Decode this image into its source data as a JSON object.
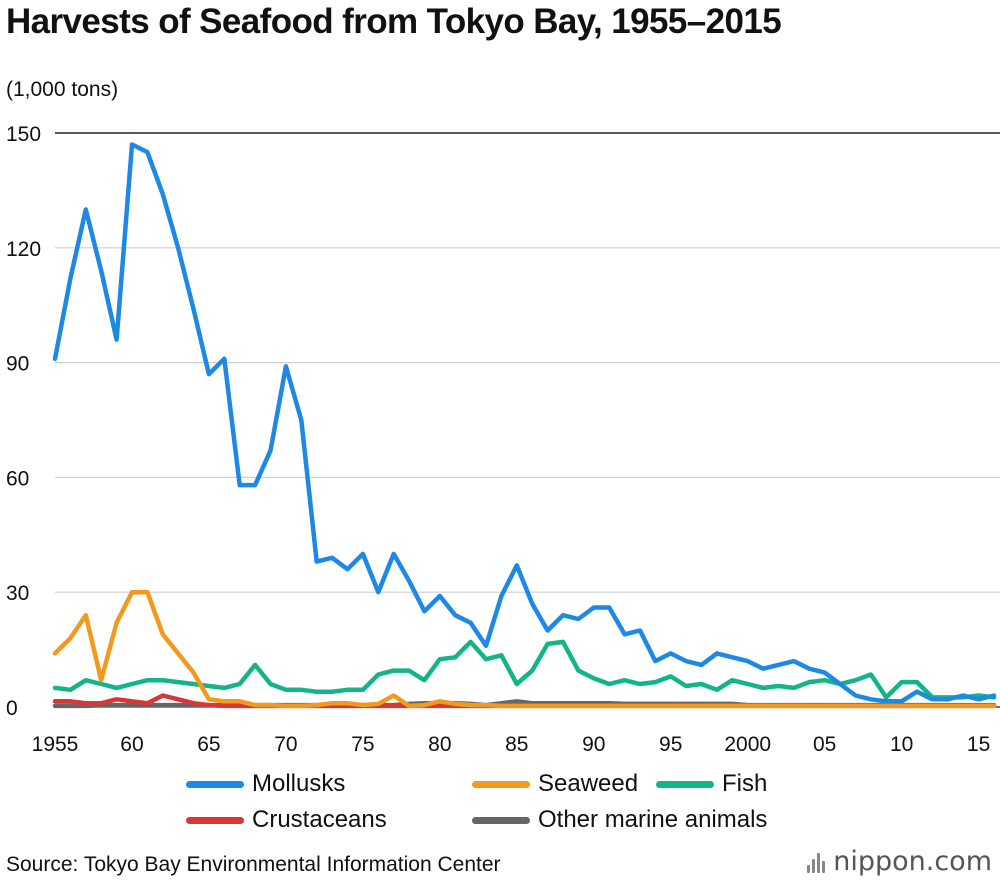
{
  "chart_data": {
    "type": "line",
    "title": "Harvests of Seafood from Tokyo Bay, 1955–2015",
    "ylabel": "(1,000 tons)",
    "ylim": [
      0,
      150
    ],
    "yticks": [
      "0",
      "30",
      "60",
      "90",
      "120",
      "150"
    ],
    "ytick_values": [
      0,
      30,
      60,
      90,
      120,
      150
    ],
    "xlim": [
      1955,
      2016
    ],
    "xticks": [
      "1955",
      "60",
      "65",
      "70",
      "75",
      "80",
      "85",
      "90",
      "95",
      "2000",
      "05",
      "10",
      "15"
    ],
    "xtick_values": [
      1955,
      1960,
      1965,
      1970,
      1975,
      1980,
      1985,
      1990,
      1995,
      2000,
      2005,
      2010,
      2015
    ],
    "grid": true,
    "legend_position": "bottom",
    "x": [
      1955,
      1956,
      1957,
      1958,
      1959,
      1960,
      1961,
      1962,
      1963,
      1964,
      1965,
      1966,
      1967,
      1968,
      1969,
      1970,
      1971,
      1972,
      1973,
      1974,
      1975,
      1976,
      1977,
      1978,
      1979,
      1980,
      1981,
      1982,
      1983,
      1984,
      1985,
      1986,
      1987,
      1988,
      1989,
      1990,
      1991,
      1992,
      1993,
      1994,
      1995,
      1996,
      1997,
      1998,
      1999,
      2000,
      2001,
      2002,
      2003,
      2004,
      2005,
      2006,
      2007,
      2008,
      2009,
      2010,
      2011,
      2012,
      2013,
      2014,
      2015,
      2016
    ],
    "series": [
      {
        "name": "Mollusks",
        "color": "#1e88e5",
        "values": [
          91,
          112,
          130,
          114,
          96,
          147,
          145,
          134,
          120,
          104,
          87,
          91,
          58,
          58,
          67,
          89,
          75,
          38,
          39,
          36,
          40,
          30,
          40,
          33,
          25,
          29,
          24,
          22,
          16,
          29,
          37,
          27,
          20,
          24,
          23,
          26,
          26,
          19,
          20,
          12,
          14,
          12,
          11,
          14,
          13,
          12,
          10,
          11,
          12,
          10,
          9,
          6,
          3,
          2,
          1.5,
          1.5,
          4,
          2,
          2,
          3,
          2,
          3
        ]
      },
      {
        "name": "Seaweed",
        "color": "#f39a1e",
        "values": [
          14,
          18,
          24,
          7,
          22,
          30,
          30,
          19,
          14,
          9,
          2,
          1.5,
          1.5,
          0.5,
          0.5,
          0.3,
          0.3,
          0.5,
          1,
          1,
          0.5,
          0.8,
          3,
          0.3,
          0.5,
          1.5,
          0.8,
          0.5,
          0.5,
          0.3,
          0.3,
          0.3,
          0.3,
          0.3,
          0.3,
          0.3,
          0.3,
          0.3,
          0.3,
          0.3,
          0.3,
          0.3,
          0.3,
          0.3,
          0.3,
          0.3,
          0.3,
          0.3,
          0.3,
          0.3,
          0.3,
          0.3,
          0.3,
          0.3,
          0.3,
          0.3,
          0.3,
          0.3,
          0.3,
          0.3,
          0.3,
          0.3
        ]
      },
      {
        "name": "Fish",
        "color": "#13b48a",
        "values": [
          5,
          4.5,
          7,
          6,
          5,
          6,
          7,
          7,
          6.5,
          6,
          5.5,
          5,
          6,
          11,
          6,
          4.5,
          4.5,
          4,
          4,
          4.5,
          4.5,
          8.5,
          9.5,
          9.5,
          7,
          12.5,
          13,
          17,
          12.5,
          13.5,
          6,
          9.5,
          16.5,
          17,
          9.5,
          7.5,
          6,
          7,
          6,
          6.5,
          8,
          5.5,
          6,
          4.5,
          7,
          6,
          5,
          5.5,
          5,
          6.5,
          7,
          6,
          7,
          8.5,
          2.5,
          6.5,
          6.5,
          2.5,
          2.5,
          2.5,
          3,
          2.5
        ]
      },
      {
        "name": "Crustaceans",
        "color": "#d93636",
        "values": [
          1.5,
          1.5,
          1,
          1,
          2,
          1.5,
          1,
          3,
          2,
          1,
          0.5,
          0.3,
          0.3,
          0.3,
          0.3,
          0.3,
          0.3,
          0.3,
          0.3,
          0.3,
          0.3,
          0.3,
          0.3,
          0.3,
          0.3,
          0.3,
          0.3,
          0.3,
          0.3,
          0.3,
          0.3,
          0.3,
          0.3,
          0.3,
          0.3,
          0.3,
          0.3,
          0.3,
          0.3,
          0.3,
          0.3,
          0.3,
          0.3,
          0.3,
          0.3,
          0.3,
          0.3,
          0.3,
          0.3,
          0.3,
          0.3,
          0.3,
          0.3,
          0.3,
          0.3,
          0.3,
          0.3,
          0.3,
          0.3,
          0.3,
          0.3,
          0.3
        ]
      },
      {
        "name": "Other marine animals",
        "color": "#666666",
        "values": [
          0.3,
          0.3,
          0.3,
          0.5,
          0.5,
          0.5,
          0.5,
          0.5,
          0.5,
          0.5,
          0.5,
          0.5,
          0.5,
          0.5,
          0.5,
          0.5,
          0.5,
          0.5,
          0.5,
          0.5,
          0.5,
          0.5,
          0.5,
          0.8,
          1,
          1,
          1,
          0.8,
          0.5,
          1,
          1.5,
          1,
          1,
          1,
          1,
          1,
          1,
          0.8,
          0.8,
          0.8,
          0.8,
          0.8,
          0.8,
          0.8,
          0.8,
          0.5,
          0.5,
          0.5,
          0.5,
          0.5,
          0.5,
          0.5,
          0.5,
          0.5,
          0.5,
          0.5,
          0.5,
          0.5,
          0.5,
          0.5,
          0.5,
          0.5
        ]
      }
    ]
  },
  "footer": {
    "source": "Source: Tokyo Bay Environmental Information Center",
    "brand": "nippon.com"
  }
}
